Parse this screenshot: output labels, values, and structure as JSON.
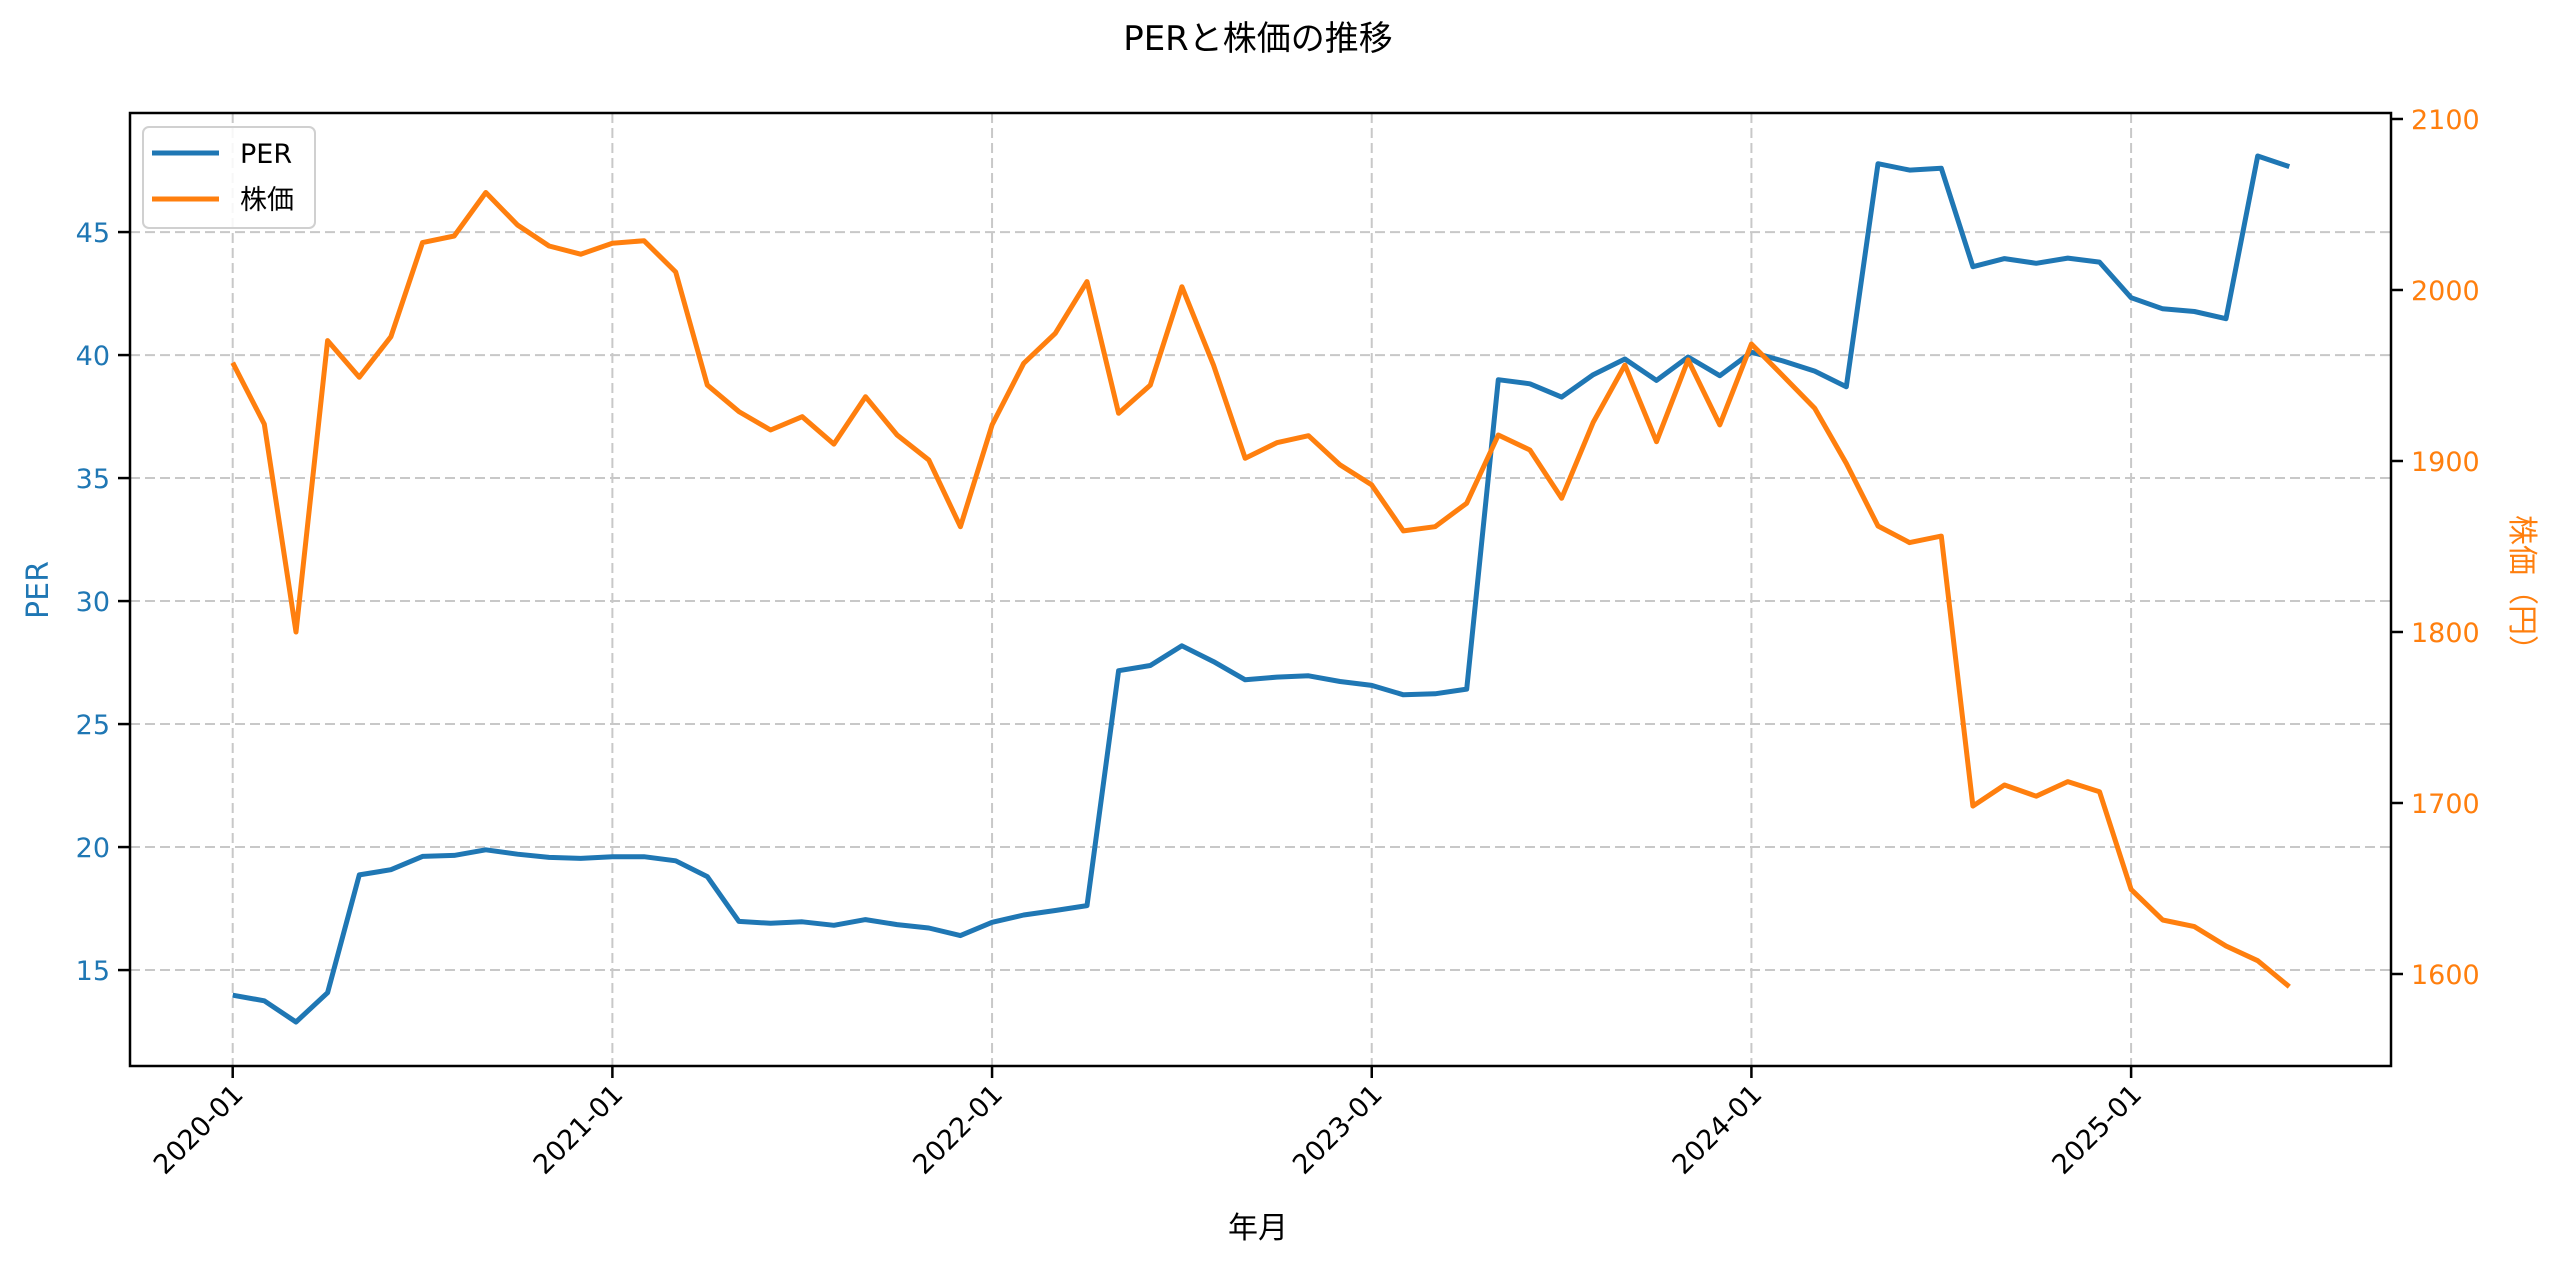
{
  "chart_data": {
    "type": "line",
    "title": "PERと株価の推移",
    "xlabel": "年月",
    "ylabel": "PER",
    "ylabel_right": "株価（円）",
    "x": [
      "2020-01",
      "2020-02",
      "2020-03",
      "2020-04",
      "2020-05",
      "2020-06",
      "2020-07",
      "2020-08",
      "2020-09",
      "2020-10",
      "2020-11",
      "2020-12",
      "2021-01",
      "2021-02",
      "2021-03",
      "2021-04",
      "2021-05",
      "2021-06",
      "2021-07",
      "2021-08",
      "2021-09",
      "2021-10",
      "2021-11",
      "2021-12",
      "2022-01",
      "2022-02",
      "2022-03",
      "2022-04",
      "2022-05",
      "2022-06",
      "2022-07",
      "2022-08",
      "2022-09",
      "2022-10",
      "2022-11",
      "2022-12",
      "2023-01",
      "2023-02",
      "2023-03",
      "2023-04",
      "2023-05",
      "2023-06",
      "2023-07",
      "2023-08",
      "2023-09",
      "2023-10",
      "2023-11",
      "2023-12",
      "2024-01",
      "2024-02",
      "2024-03",
      "2024-04",
      "2024-05",
      "2024-06",
      "2024-07",
      "2024-08",
      "2024-09",
      "2024-10",
      "2024-11",
      "2024-12",
      "2025-01",
      "2025-02",
      "2025-03",
      "2025-04",
      "2025-05",
      "2025-06"
    ],
    "xticks": [
      "2020-01",
      "2021-01",
      "2022-01",
      "2023-01",
      "2024-01",
      "2025-01"
    ],
    "series": [
      {
        "name": "PER",
        "axis": "left",
        "color": "#1f77b4",
        "values": [
          13.98,
          13.75,
          12.89,
          14.08,
          18.87,
          19.08,
          19.62,
          19.66,
          19.89,
          19.71,
          19.58,
          19.54,
          19.61,
          19.61,
          19.44,
          18.8,
          16.98,
          16.9,
          16.96,
          16.82,
          17.05,
          16.85,
          16.71,
          16.4,
          16.94,
          17.24,
          17.42,
          17.62,
          27.17,
          27.38,
          28.18,
          27.54,
          26.8,
          26.91,
          26.96,
          26.73,
          26.57,
          26.19,
          26.23,
          26.42,
          39.0,
          38.83,
          38.29,
          39.2,
          39.84,
          38.97,
          39.92,
          39.16,
          40.12,
          39.76,
          39.35,
          38.71,
          47.78,
          47.52,
          47.59,
          43.59,
          43.92,
          43.73,
          43.94,
          43.78,
          42.33,
          41.88,
          41.77,
          41.48,
          48.09,
          47.66
        ]
      },
      {
        "name": "株価",
        "axis": "right",
        "color": "#ff7f0e",
        "values": [
          1957.5,
          1921.6,
          1800.0,
          1970.4,
          1949.0,
          1972.7,
          2027.7,
          2031.6,
          2057.0,
          2038.0,
          2025.7,
          2020.9,
          2027.3,
          2028.8,
          2010.5,
          1944.4,
          1928.9,
          1918.1,
          1925.9,
          1909.9,
          1937.6,
          1915.2,
          1900.6,
          1861.6,
          1921.1,
          1957.1,
          1974.7,
          2004.9,
          1927.9,
          1944.4,
          2001.9,
          1956.1,
          1901.6,
          1910.7,
          1914.8,
          1897.7,
          1886.0,
          1859.1,
          1861.6,
          1875.3,
          1915.2,
          1906.4,
          1878.2,
          1922.6,
          1956.1,
          1911.3,
          1959.1,
          1921.1,
          1968.4,
          1949.7,
          1930.8,
          1898.6,
          1862.0,
          1852.3,
          1856.1,
          1698.2,
          1710.5,
          1704.0,
          1712.5,
          1706.6,
          1649.5,
          1631.6,
          1627.7,
          1616.4,
          1607.8,
          1592.6
        ]
      }
    ],
    "ylim": [
      11.1,
      49.84
    ],
    "ylim_right": [
      1546.2,
      2103.5
    ],
    "yticks": [
      15,
      20,
      25,
      30,
      35,
      40,
      45
    ],
    "yticks_right": [
      1600,
      1700,
      1800,
      1900,
      2000,
      2100
    ],
    "grid": true,
    "legend_position": "upper left"
  },
  "legend": {
    "items": [
      {
        "label": "PER",
        "color": "#1f77b4"
      },
      {
        "label": "株価",
        "color": "#ff7f0e"
      }
    ]
  }
}
